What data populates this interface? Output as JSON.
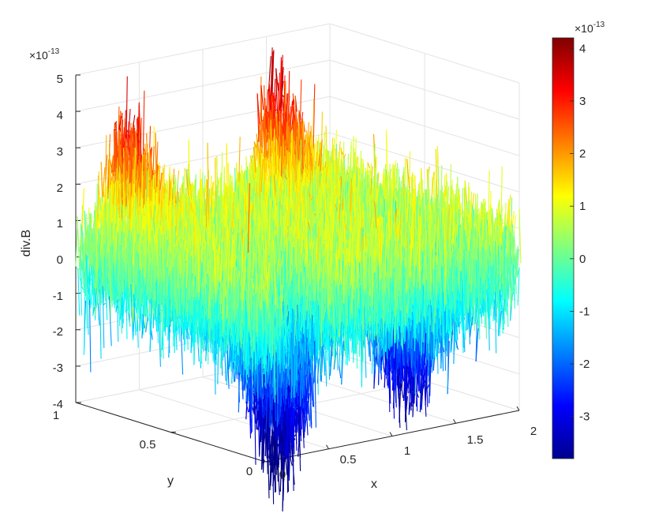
{
  "chart_data": {
    "type": "surface",
    "zlabel": "div.B",
    "xlabel": "x",
    "ylabel": "y",
    "xlim": [
      0,
      2
    ],
    "ylim": [
      0,
      1
    ],
    "zlim": [
      -4e-13,
      5e-13
    ],
    "z_exponent_label": "×10",
    "z_exponent_power": "-13",
    "x_ticks": [
      "0",
      "0.5",
      "1",
      "1.5",
      "2"
    ],
    "y_ticks": [
      "0",
      "0.5",
      "1"
    ],
    "z_ticks": [
      "5",
      "4",
      "3",
      "2",
      "1",
      "0",
      "-1",
      "-2",
      "-3",
      "-4"
    ],
    "colormap": "jet",
    "colorbar": {
      "range": [
        -3.8e-13,
        4.2e-13
      ],
      "ticks": [
        "4",
        "3",
        "2",
        "1",
        "0",
        "-1",
        "-2",
        "-3"
      ],
      "exponent_label": "×10",
      "exponent_power": "-13"
    },
    "grid": true,
    "features": [
      {
        "kind": "peak",
        "x": 0.32,
        "y": 0.95,
        "z": 2.5e-13
      },
      {
        "kind": "peak",
        "x": 1.5,
        "y": 0.95,
        "z": 2.8e-13
      },
      {
        "kind": "trough",
        "x": 0.32,
        "y": 0.15,
        "z": -3.9e-13
      },
      {
        "kind": "trough",
        "x": 1.55,
        "y": 0.3,
        "z": -2.9e-13
      }
    ],
    "noise_std": 8e-14,
    "baseline": 0.0
  }
}
